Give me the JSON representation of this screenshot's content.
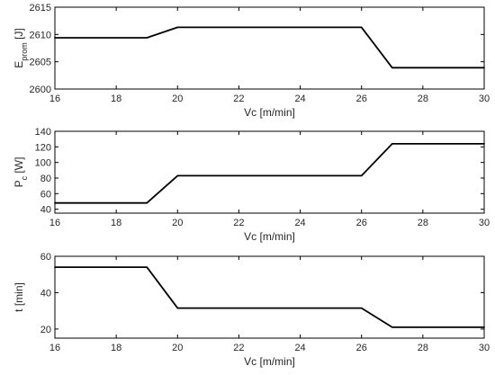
{
  "chart_data": [
    {
      "type": "line",
      "xlabel": "Vc [m/min]",
      "ylabel": {
        "main": "E",
        "sub": "prom",
        "unit": " [J]"
      },
      "xlim": [
        16,
        30
      ],
      "ylim": [
        2600,
        2615
      ],
      "xticks": [
        16,
        18,
        20,
        22,
        24,
        26,
        28,
        30
      ],
      "yticks": [
        2600,
        2605,
        2610,
        2615
      ],
      "grid": false,
      "series": [
        {
          "x": [
            16,
            19,
            20,
            26,
            27,
            30
          ],
          "y": [
            2609.4,
            2609.4,
            2611.3,
            2611.3,
            2603.9,
            2603.9
          ]
        }
      ]
    },
    {
      "type": "line",
      "xlabel": "Vc [m/min]",
      "ylabel": {
        "main": "P",
        "sub": "c",
        "unit": " [W]"
      },
      "xlim": [
        16,
        30
      ],
      "ylim": [
        35,
        140
      ],
      "xticks": [
        16,
        18,
        20,
        22,
        24,
        26,
        28,
        30
      ],
      "yticks": [
        40,
        60,
        80,
        100,
        120,
        140
      ],
      "grid": false,
      "series": [
        {
          "x": [
            16,
            19,
            20,
            26,
            27,
            30
          ],
          "y": [
            48,
            48,
            83,
            83,
            124,
            124
          ]
        }
      ]
    },
    {
      "type": "line",
      "xlabel": "Vc [m/min]",
      "ylabel": {
        "main": "t [min]",
        "sub": "",
        "unit": ""
      },
      "xlim": [
        16,
        30
      ],
      "ylim": [
        15,
        60
      ],
      "xticks": [
        16,
        18,
        20,
        22,
        24,
        26,
        28,
        30
      ],
      "yticks": [
        20,
        40,
        60
      ],
      "grid": false,
      "series": [
        {
          "x": [
            16,
            19,
            20,
            26,
            27,
            30
          ],
          "y": [
            54,
            54,
            31.5,
            31.5,
            21,
            21
          ]
        }
      ]
    }
  ]
}
